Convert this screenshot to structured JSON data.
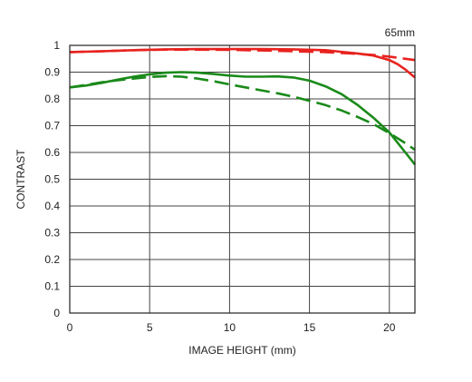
{
  "chart_data": {
    "type": "line",
    "corner_label": "65mm",
    "xlabel": "IMAGE HEIGHT (mm)",
    "ylabel": "CONTRAST",
    "xlim": [
      0,
      21.6
    ],
    "ylim": [
      0,
      1
    ],
    "x_ticks": [
      0,
      5,
      10,
      15,
      20
    ],
    "x_tick_labels": [
      "0",
      "5",
      "10",
      "15",
      "20"
    ],
    "y_ticks": [
      0,
      0.1,
      0.2,
      0.3,
      0.4,
      0.5,
      0.6,
      0.7,
      0.8,
      0.9,
      1
    ],
    "y_tick_labels": [
      "0",
      "0.1",
      "0.2",
      "0.3",
      "0.4",
      "0.5",
      "0.6",
      "0.7",
      "0.8",
      "0.9",
      "1"
    ],
    "grid": true,
    "series": [
      {
        "color": "#e8231f",
        "dash": "solid",
        "x": [
          0,
          2,
          4,
          6,
          8,
          10,
          12,
          14,
          16,
          18,
          19,
          20,
          20.5,
          21,
          21.6
        ],
        "y": [
          0.975,
          0.978,
          0.982,
          0.985,
          0.986,
          0.986,
          0.986,
          0.985,
          0.982,
          0.97,
          0.962,
          0.945,
          0.93,
          0.91,
          0.88
        ]
      },
      {
        "color": "#e8231f",
        "dash": "dashed",
        "x": [
          0,
          2,
          4,
          6,
          8,
          10,
          12,
          14,
          16,
          18,
          19,
          20,
          21,
          21.6
        ],
        "y": [
          0.975,
          0.978,
          0.982,
          0.984,
          0.984,
          0.983,
          0.981,
          0.978,
          0.975,
          0.968,
          0.964,
          0.958,
          0.95,
          0.945
        ]
      },
      {
        "color": "#1a8a1a",
        "dash": "solid",
        "x": [
          0,
          1,
          2,
          3,
          4,
          5,
          6,
          7,
          8,
          9,
          10,
          11,
          12,
          13,
          14,
          15,
          16,
          17,
          18,
          19,
          20,
          21,
          21.6
        ],
        "y": [
          0.843,
          0.85,
          0.86,
          0.872,
          0.883,
          0.892,
          0.898,
          0.9,
          0.898,
          0.893,
          0.887,
          0.883,
          0.883,
          0.884,
          0.88,
          0.868,
          0.847,
          0.818,
          0.778,
          0.73,
          0.675,
          0.6,
          0.555
        ]
      },
      {
        "color": "#1a8a1a",
        "dash": "dashed",
        "x": [
          0,
          1,
          2,
          3,
          4,
          5,
          6,
          7,
          8,
          9,
          10,
          11,
          12,
          13,
          14,
          15,
          16,
          17,
          18,
          19,
          20,
          21,
          21.6
        ],
        "y": [
          0.843,
          0.852,
          0.862,
          0.87,
          0.876,
          0.882,
          0.885,
          0.883,
          0.876,
          0.866,
          0.854,
          0.843,
          0.832,
          0.821,
          0.808,
          0.793,
          0.777,
          0.757,
          0.733,
          0.706,
          0.672,
          0.635,
          0.61
        ]
      }
    ]
  }
}
